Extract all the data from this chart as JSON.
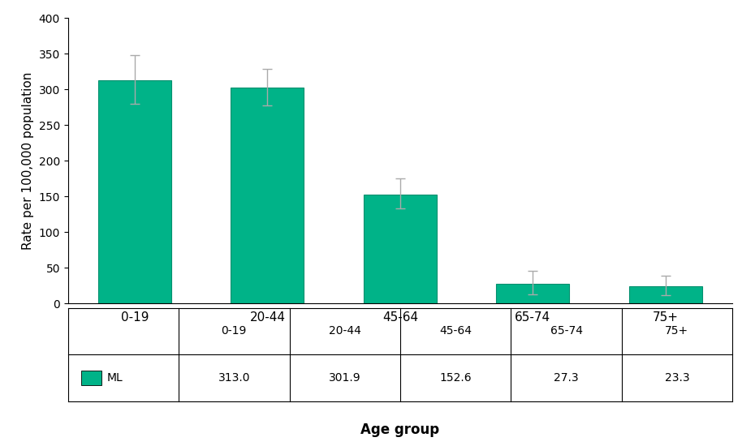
{
  "categories": [
    "0-19",
    "20-44",
    "45-64",
    "65-74",
    "75+"
  ],
  "values": [
    313.0,
    301.9,
    152.6,
    27.3,
    23.3
  ],
  "error_upper": [
    35,
    27,
    22,
    18,
    15
  ],
  "error_lower": [
    33,
    25,
    20,
    15,
    12
  ],
  "bar_color": "#00b388",
  "bar_edge_color": "#008f6e",
  "error_color": "#aaaaaa",
  "ylabel": "Rate per 100,000 population",
  "xlabel": "Age group",
  "ylim": [
    0,
    400
  ],
  "yticks": [
    0,
    50,
    100,
    150,
    200,
    250,
    300,
    350,
    400
  ],
  "legend_label": "ML",
  "background_color": "#ffffff",
  "bar_width": 0.55
}
